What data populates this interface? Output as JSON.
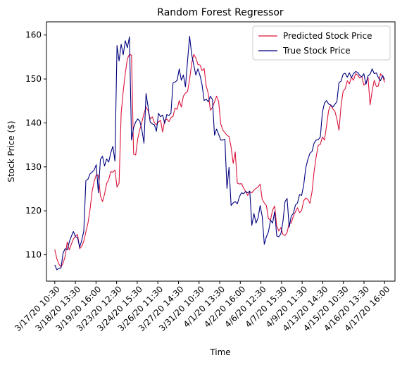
{
  "chart_data": {
    "type": "line",
    "title": "Random Forest Regressor",
    "xlabel": "Time",
    "ylabel": "Stock Price ($)",
    "xtick_labels": [
      "3/17/20 10:30",
      "3/18/20 13:30",
      "3/19/20 16:00",
      "3/23/20 12:30",
      "3/24/20 15:30",
      "3/26/20 11:30",
      "3/27/20 14:30",
      "3/31/20 10:30",
      "4/1/20 13:30",
      "4/2/20 16:00",
      "4/6/20 12:30",
      "4/7/20 15:30",
      "4/9/20 11:30",
      "4/13/20 14:30",
      "4/15/20 10:30",
      "4/16/20 13:30",
      "4/17/20 16:00"
    ],
    "yticks": [
      110,
      120,
      130,
      140,
      150,
      160
    ],
    "ylim": [
      104,
      163
    ],
    "x_range": [
      -4,
      164
    ],
    "grid": false,
    "legend_position": "upper right",
    "series": [
      {
        "name": "Predicted Stock Price",
        "color": "#dc143c",
        "values": [
          111.2,
          109.1,
          107.9,
          107.2,
          108.1,
          109.6,
          112.9,
          111.1,
          112.4,
          113.6,
          114.3,
          114.6,
          111.4,
          111.9,
          113.1,
          115.2,
          117.2,
          120.3,
          124.4,
          126.7,
          128.2,
          128.1,
          123.4,
          122.1,
          123.8,
          126.2,
          127.1,
          128.9,
          128.8,
          129.3,
          125.4,
          126.3,
          142.2,
          147.2,
          151.3,
          154.6,
          155.6,
          155.4,
          132.9,
          132.7,
          136.4,
          138.5,
          140.2,
          142.2,
          143.6,
          142.8,
          140.9,
          141.4,
          140.1,
          139.6,
          140.2,
          140.6,
          137.9,
          140.6,
          140.9,
          140.3,
          141.2,
          141.5,
          143.4,
          143.1,
          145.1,
          143.6,
          146.1,
          146.8,
          147.1,
          149.9,
          153.6,
          155.6,
          154.8,
          153.3,
          153.2,
          151.9,
          152.4,
          148.4,
          146.7,
          142.9,
          143.5,
          144.8,
          146.1,
          144.9,
          139.8,
          138.4,
          137.8,
          137.2,
          136.9,
          134.5,
          130.8,
          133.4,
          126.3,
          126.1,
          126.2,
          125.2,
          124.4,
          123.5,
          124.3,
          124.1,
          124.7,
          125.1,
          125.4,
          126.1,
          122.6,
          121.8,
          121.2,
          118.2,
          117.9,
          120.2,
          121.1,
          116.5,
          115.4,
          116.2,
          114.6,
          114.4,
          115.1,
          117.2,
          117.2,
          118.8,
          119.8,
          120.7,
          119.6,
          120.1,
          122.3,
          122.9,
          122.6,
          121.7,
          124.3,
          128.9,
          132.3,
          134.9,
          135.1,
          136.8,
          136.1,
          139.3,
          142.8,
          144.1,
          143.2,
          142.7,
          140.9,
          138.3,
          143.9,
          147.2,
          147.8,
          149.6,
          148.9,
          150.4,
          149.7,
          151.2,
          150.9,
          150.2,
          150.6,
          148.6,
          149.1,
          150.4,
          144.1,
          147.3,
          149.7,
          148.3,
          148.4,
          151.2,
          150.7,
          149.2
        ]
      },
      {
        "name": "True Stock Price",
        "color": "#00007f",
        "values": [
          107.7,
          106.6,
          106.9,
          107.0,
          110.4,
          111.4,
          111.1,
          112.9,
          114.2,
          115.3,
          114.1,
          113.9,
          111.7,
          113.3,
          115.4,
          126.9,
          127.2,
          128.4,
          128.8,
          129.3,
          130.5,
          124.1,
          131.7,
          132.4,
          130.2,
          131.8,
          131.1,
          133.2,
          134.7,
          131.3,
          157.6,
          154.1,
          157.9,
          155.5,
          158.7,
          157.1,
          159.6,
          136.1,
          138.9,
          140.2,
          140.9,
          140.4,
          138.4,
          135.4,
          146.7,
          143.6,
          140.2,
          139.8,
          139.6,
          138.1,
          142.2,
          141.4,
          141.8,
          139.9,
          141.9,
          141.7,
          142.2,
          149.1,
          149.3,
          149.7,
          152.3,
          149.7,
          150.9,
          148.2,
          154.1,
          159.7,
          155.6,
          153.2,
          150.9,
          152.3,
          150.8,
          148.7,
          145.1,
          145.4,
          144.8,
          146.1,
          145.3,
          137.2,
          138.6,
          137.4,
          136.1,
          136.1,
          136.3,
          125.1,
          129.9,
          121.2,
          121.8,
          122.1,
          121.6,
          123.2,
          124.1,
          123.9,
          124.4,
          124.1,
          124.5,
          116.7,
          119.4,
          117.2,
          118.4,
          121.2,
          118.7,
          112.4,
          114.1,
          115.2,
          117.9,
          117.2,
          119.8,
          114.3,
          114.1,
          114.8,
          117.6,
          122.1,
          122.8,
          116.3,
          118.8,
          119.4,
          121.3,
          121.8,
          123.7,
          123.5,
          125.9,
          129.8,
          131.7,
          133.1,
          133.5,
          135.4,
          136.1,
          136.2,
          136.8,
          142.4,
          144.5,
          145.1,
          144.3,
          144.1,
          143.6,
          144.2,
          144.9,
          149.2,
          149.5,
          151.1,
          151.3,
          150.4,
          151.4,
          150.3,
          151.2,
          151.7,
          151.5,
          150.8,
          150.5,
          151.2,
          148.8,
          150.7,
          151.1,
          152.3,
          151.2,
          151.4,
          150.3,
          149.6,
          150.8,
          149.9
        ]
      }
    ]
  }
}
